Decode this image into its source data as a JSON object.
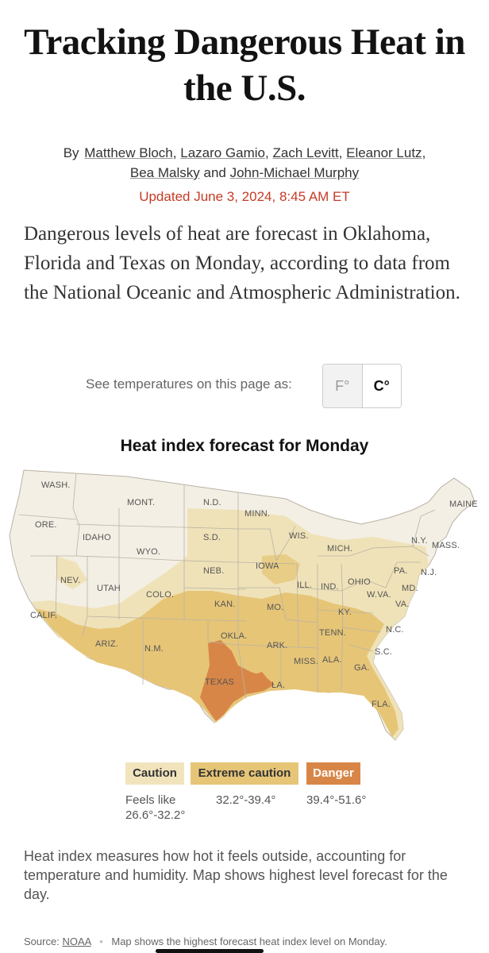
{
  "headline": "Tracking Dangerous Heat in the U.S.",
  "byline": {
    "prefix": "By",
    "authors": [
      "Matthew Bloch",
      "Lazaro Gamio",
      "Zach Levitt",
      "Eleanor Lutz",
      "Bea Malsky",
      "John-Michael Murphy"
    ],
    "sep": ",",
    "and": "and"
  },
  "updated": "Updated June 3, 2024, 8:45 AM ET",
  "intro": "Dangerous levels of heat are forecast in Oklahoma, Florida and Texas on Monday, according to data from the National Oceanic and Atmospheric Administration.",
  "unit_toggle": {
    "label": "See temperatures on this page as:",
    "options": [
      "F°",
      "C°"
    ],
    "selected": "C°"
  },
  "map": {
    "title": "Heat index forecast for Monday",
    "state_labels": {
      "wash": "WASH.",
      "ore": "ORE.",
      "calif": "CALIF.",
      "nev": "NEV.",
      "idaho": "IDAHO",
      "mont": "MONT.",
      "wyo": "WYO.",
      "utah": "UTAH",
      "ariz": "ARIZ.",
      "colo": "COLO.",
      "nm": "N.M.",
      "nd": "N.D.",
      "sd": "S.D.",
      "neb": "NEB.",
      "kan": "KAN.",
      "okla": "OKLA.",
      "texas": "TEXAS",
      "minn": "MINN.",
      "iowa": "IOWA",
      "mo": "MO.",
      "ark": "ARK.",
      "la": "LA.",
      "wis": "WIS.",
      "ill": "ILL.",
      "mich": "MICH.",
      "ind": "IND.",
      "ohio": "OHIO",
      "ky": "KY.",
      "tenn": "TENN.",
      "miss": "MISS.",
      "ala": "ALA.",
      "ga": "GA.",
      "fla": "FLA.",
      "sc": "S.C.",
      "nc": "N.C.",
      "va": "VA.",
      "wva": "W.VA.",
      "pa": "PA.",
      "md": "MD.",
      "nj": "N.J.",
      "ny": "N.Y.",
      "mass": "MASS.",
      "maine": "MAINE"
    },
    "colors": {
      "none": "#f4efe4",
      "caution": "#efe2b8",
      "extreme": "#e6c577",
      "danger": "#d88647",
      "border": "#b9b2a5"
    }
  },
  "legend": {
    "categories": [
      {
        "label": "Caution",
        "range_prefix": "Feels like",
        "range": "26.6°-32.2°"
      },
      {
        "label": "Extreme caution",
        "range": "32.2°-39.4°"
      },
      {
        "label": "Danger",
        "range": "39.4°-51.6°"
      }
    ]
  },
  "footnote": "Heat index measures how hot it feels outside, accounting for temperature and humidity. Map shows highest level forecast for the day.",
  "source": {
    "label": "Source:",
    "link": "NOAA",
    "note": "Map shows the highest forecast heat index level on Monday."
  }
}
